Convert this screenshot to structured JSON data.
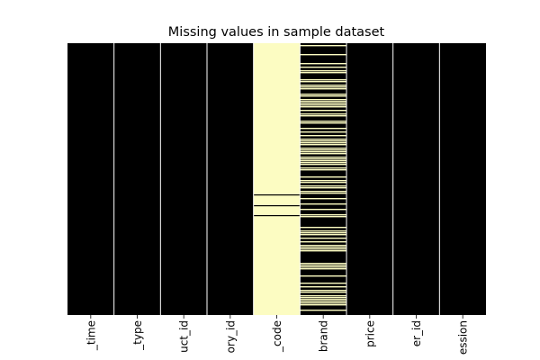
{
  "chart_data": {
    "type": "heatmap",
    "title": "Missing values in sample dataset",
    "xlabel": "",
    "ylabel": "",
    "columns": [
      "_time",
      "_type",
      "uct_id",
      "ory_id",
      "_code",
      "brand",
      "price",
      "er_id",
      "ession"
    ],
    "missing_fraction": [
      0,
      0,
      0,
      0,
      0.98,
      0.55,
      0,
      0,
      0
    ],
    "colors": {
      "present": "#000000",
      "missing": "#fcfcc2",
      "separator": "#ffffff"
    },
    "colorbar": false,
    "yticks_shown": false
  }
}
